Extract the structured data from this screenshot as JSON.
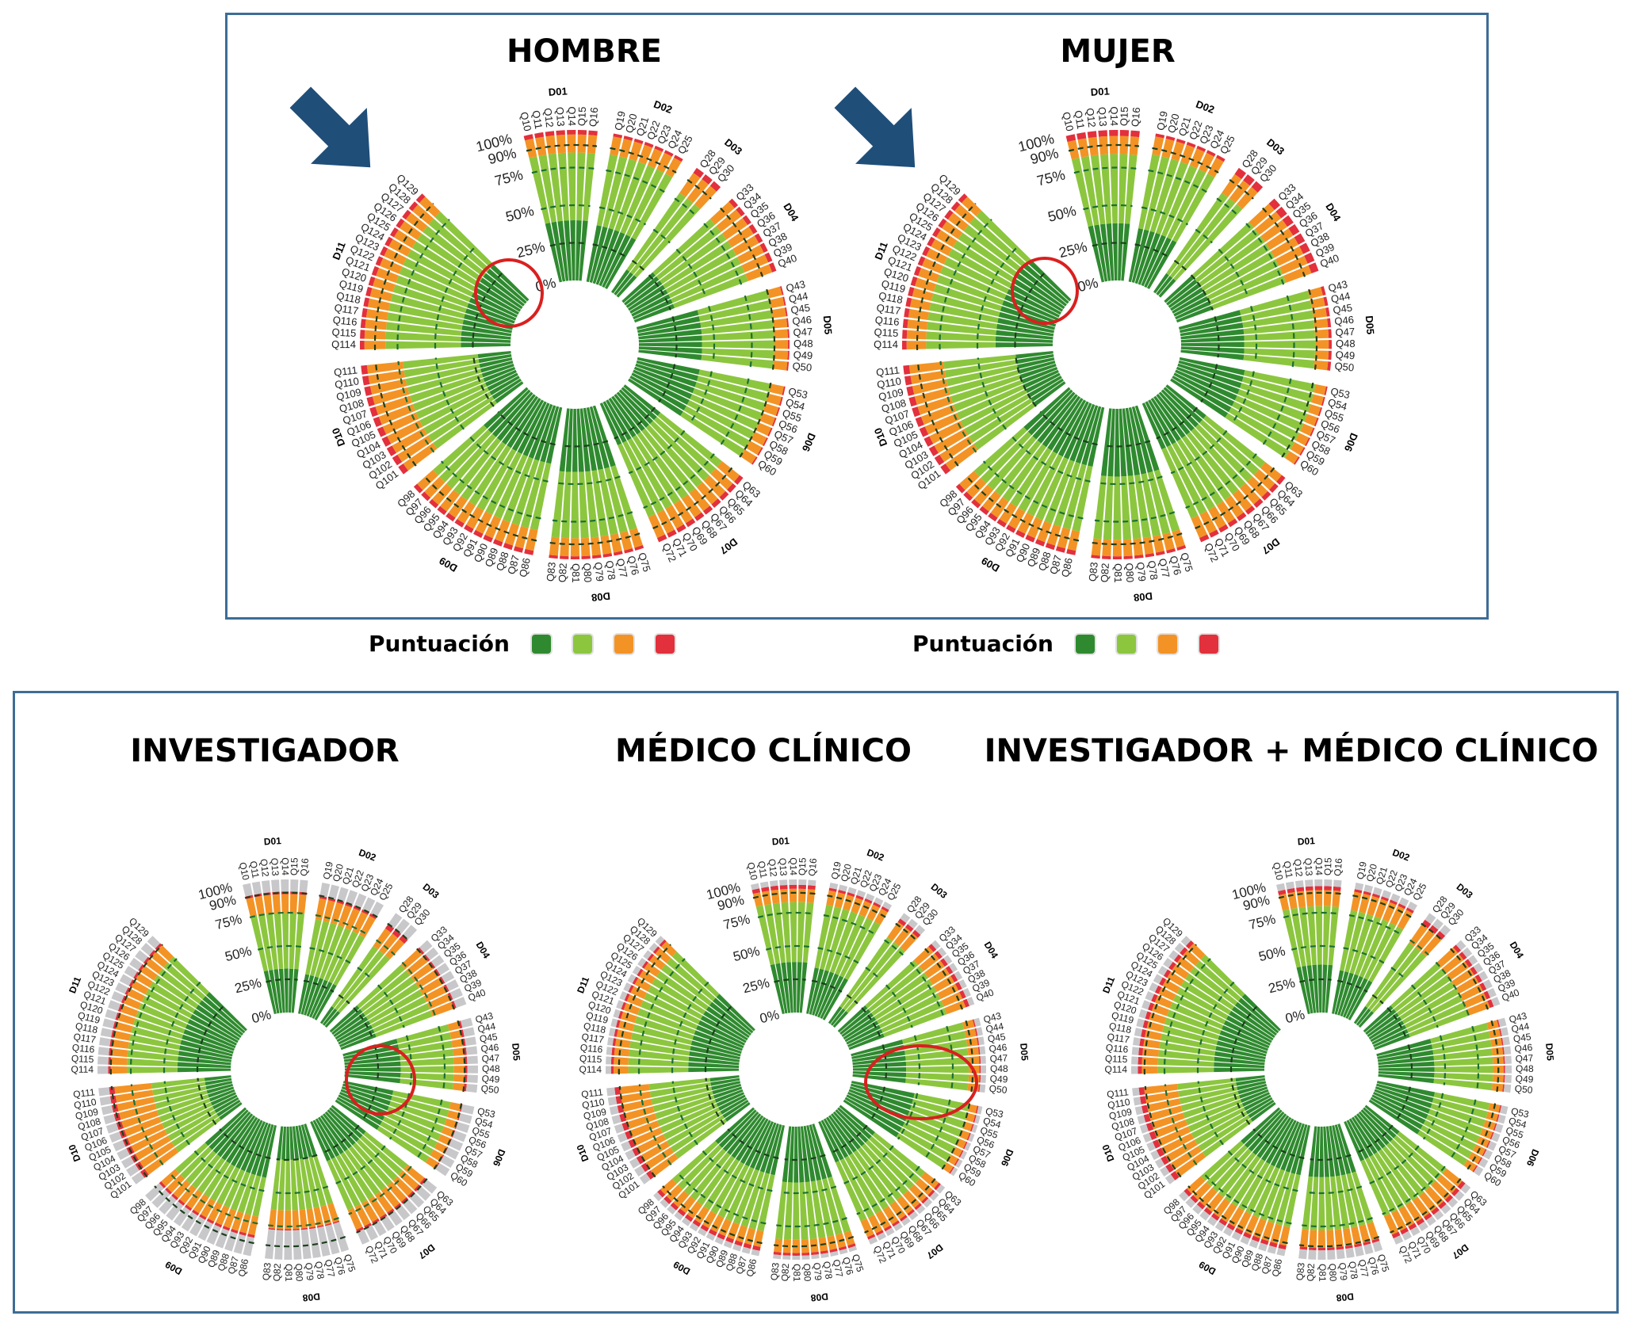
{
  "legends": [
    {
      "label": "Puntuación",
      "colors": [
        "#2f8a2f",
        "#8cc63f",
        "#f39325",
        "#e2303c"
      ]
    },
    {
      "label": "Puntuación",
      "colors": [
        "#2f8a2f",
        "#8cc63f",
        "#f39325",
        "#e2303c"
      ]
    }
  ],
  "annotations": {
    "arrow_color": "#1f4e79",
    "highlight_color": "#d9201f"
  },
  "chart_data": {
    "type": "radial stacked bar",
    "radial_ticks": [
      "0%",
      "25%",
      "50%",
      "75%",
      "90%",
      "100%"
    ],
    "segment_colors": [
      "#2f8a2f",
      "#8cc63f",
      "#f39325",
      "#e2303c",
      "#c8c8cb"
    ],
    "domains": [
      {
        "name": "D01",
        "questions": [
          "Q10",
          "Q11",
          "Q12",
          "Q13",
          "Q14",
          "Q15",
          "Q16"
        ]
      },
      {
        "name": "D02",
        "questions": [
          "Q19",
          "Q20",
          "Q21",
          "Q22",
          "Q23",
          "Q24",
          "Q25"
        ]
      },
      {
        "name": "D03",
        "questions": [
          "Q28",
          "Q29",
          "Q30"
        ]
      },
      {
        "name": "D04",
        "questions": [
          "Q33",
          "Q34",
          "Q35",
          "Q36",
          "Q37",
          "Q38",
          "Q39",
          "Q40"
        ]
      },
      {
        "name": "D05",
        "questions": [
          "Q43",
          "Q44",
          "Q45",
          "Q46",
          "Q47",
          "Q48",
          "Q49",
          "Q50"
        ]
      },
      {
        "name": "D06",
        "questions": [
          "Q53",
          "Q54",
          "Q55",
          "Q56",
          "Q57",
          "Q58",
          "Q59",
          "Q60"
        ]
      },
      {
        "name": "D07",
        "questions": [
          "Q63",
          "Q64",
          "Q65",
          "Q66",
          "Q67",
          "Q68",
          "Q69",
          "Q70",
          "Q71",
          "Q72"
        ]
      },
      {
        "name": "D08",
        "questions": [
          "Q75",
          "Q76",
          "Q77",
          "Q78",
          "Q79",
          "Q80",
          "Q81",
          "Q82",
          "Q83"
        ]
      },
      {
        "name": "D09",
        "questions": [
          "Q86",
          "Q87",
          "Q88",
          "Q89",
          "Q90",
          "Q91",
          "Q92",
          "Q93",
          "Q94",
          "Q95",
          "Q96",
          "Q97",
          "Q98"
        ]
      },
      {
        "name": "D10",
        "questions": [
          "Q101",
          "Q102",
          "Q103",
          "Q104",
          "Q105",
          "Q106",
          "Q107",
          "Q108",
          "Q109",
          "Q110",
          "Q111"
        ]
      },
      {
        "name": "D11",
        "questions": [
          "Q114",
          "Q115",
          "Q116",
          "Q117",
          "Q118",
          "Q119",
          "Q120",
          "Q121",
          "Q122",
          "Q123",
          "Q124",
          "Q125",
          "Q126",
          "Q127",
          "Q128",
          "Q129"
        ]
      }
    ],
    "panels": [
      {
        "title": "HOMBRE",
        "domain_values_pct": [
          [
            40,
            45,
            12,
            3
          ],
          [
            38,
            48,
            12,
            2
          ],
          [
            18,
            62,
            16,
            4
          ],
          [
            28,
            52,
            17,
            3
          ],
          [
            42,
            48,
            9,
            1
          ],
          [
            42,
            48,
            9,
            1
          ],
          [
            30,
            52,
            15,
            3
          ],
          [
            42,
            44,
            12,
            2
          ],
          [
            38,
            45,
            14,
            3
          ],
          [
            22,
            50,
            24,
            4
          ],
          [
            33,
            50,
            14,
            3
          ]
        ]
      },
      {
        "title": "MUJER",
        "domain_values_pct": [
          [
            38,
            46,
            12,
            4
          ],
          [
            36,
            50,
            12,
            2
          ],
          [
            15,
            65,
            15,
            5
          ],
          [
            25,
            52,
            18,
            5
          ],
          [
            42,
            47,
            9,
            2
          ],
          [
            44,
            48,
            7,
            1
          ],
          [
            33,
            50,
            14,
            3
          ],
          [
            45,
            42,
            11,
            2
          ],
          [
            40,
            44,
            13,
            3
          ],
          [
            25,
            48,
            23,
            4
          ],
          [
            38,
            46,
            13,
            3
          ]
        ]
      },
      {
        "title": "INVESTIGADOR",
        "domain_values_pct": [
          [
            33,
            42,
            14,
            2,
            9
          ],
          [
            30,
            42,
            16,
            2,
            10
          ],
          [
            15,
            55,
            16,
            4,
            10
          ],
          [
            28,
            45,
            17,
            2,
            8
          ],
          [
            42,
            40,
            8,
            2,
            8
          ],
          [
            38,
            44,
            8,
            1,
            9
          ],
          [
            32,
            40,
            16,
            2,
            10
          ],
          [
            25,
            38,
            14,
            1,
            22
          ],
          [
            40,
            30,
            14,
            2,
            14
          ],
          [
            20,
            40,
            28,
            4,
            8
          ],
          [
            40,
            38,
            12,
            2,
            8
          ]
        ]
      },
      {
        "title": "MÉDICO CLÍNICO",
        "domain_values_pct": [
          [
            38,
            45,
            10,
            3,
            4
          ],
          [
            35,
            48,
            11,
            2,
            4
          ],
          [
            15,
            63,
            14,
            3,
            5
          ],
          [
            28,
            50,
            15,
            3,
            4
          ],
          [
            40,
            47,
            8,
            1,
            4
          ],
          [
            48,
            42,
            6,
            1,
            3
          ],
          [
            33,
            48,
            13,
            2,
            4
          ],
          [
            42,
            43,
            10,
            2,
            3
          ],
          [
            38,
            43,
            12,
            3,
            4
          ],
          [
            22,
            46,
            22,
            4,
            6
          ],
          [
            38,
            45,
            11,
            2,
            4
          ]
        ]
      },
      {
        "title": "INVESTIGADOR + MÉDICO CLÍNICO",
        "domain_values_pct": [
          [
            36,
            44,
            12,
            3,
            5
          ],
          [
            33,
            46,
            14,
            2,
            5
          ],
          [
            15,
            58,
            17,
            4,
            6
          ],
          [
            28,
            47,
            17,
            3,
            5
          ],
          [
            42,
            44,
            8,
            1,
            5
          ],
          [
            44,
            42,
            8,
            1,
            5
          ],
          [
            32,
            45,
            15,
            3,
            5
          ],
          [
            38,
            40,
            13,
            2,
            7
          ],
          [
            38,
            40,
            14,
            3,
            5
          ],
          [
            22,
            44,
            25,
            4,
            5
          ],
          [
            38,
            42,
            12,
            3,
            5
          ]
        ]
      }
    ]
  }
}
